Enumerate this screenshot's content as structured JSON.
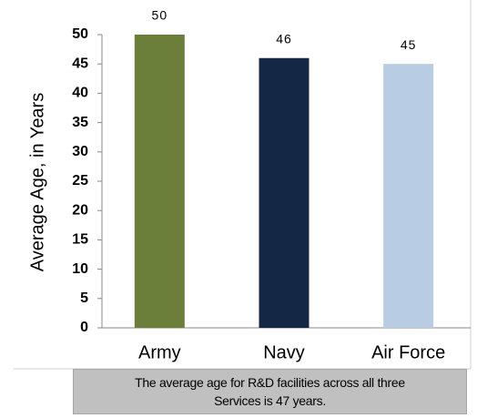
{
  "chart_data": {
    "type": "bar",
    "y_label": "Average Age, in Years",
    "categories": [
      "Army",
      "Navy",
      "Air Force"
    ],
    "values": [
      50,
      46,
      45
    ],
    "colors": [
      "#6b7f3a",
      "#142846",
      "#b8cce4"
    ],
    "ylim": [
      0,
      50
    ],
    "yticks": [
      0,
      5,
      10,
      15,
      20,
      25,
      30,
      35,
      40,
      45,
      50
    ],
    "annotation": "The average age for R&D facilities across all three Services is 47 years."
  }
}
